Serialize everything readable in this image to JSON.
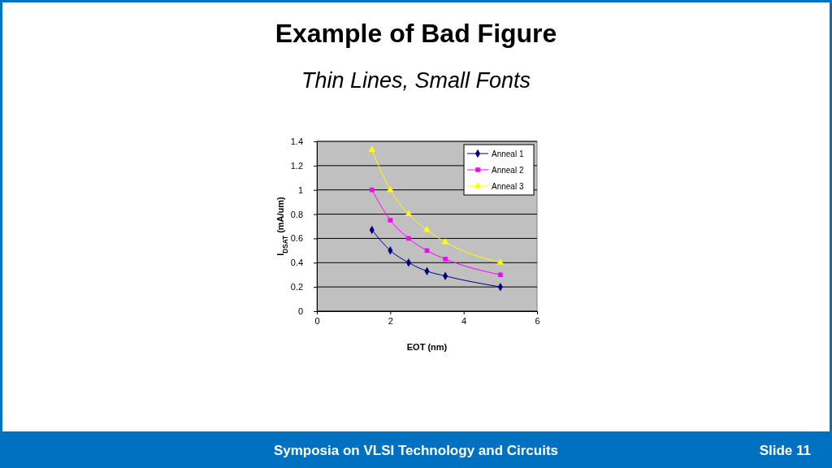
{
  "chart_data": {
    "type": "line",
    "title": "Example of Bad Figure",
    "subtitle": "Thin Lines, Small Fonts",
    "xlabel": "EOT (nm)",
    "ylabel": "I$_{DSAT}$ (mA/um)",
    "x": [
      1.5,
      2,
      2.5,
      3,
      3.5,
      5
    ],
    "series": [
      {
        "name": "Anneal 1",
        "color": "#000080",
        "marker": "diamond",
        "values": [
          0.67,
          0.5,
          0.4,
          0.33,
          0.29,
          0.2
        ]
      },
      {
        "name": "Anneal 2",
        "color": "#ff00ff",
        "marker": "square",
        "values": [
          1.0,
          0.75,
          0.6,
          0.5,
          0.43,
          0.3
        ]
      },
      {
        "name": "Anneal 3",
        "color": "#ffff00",
        "marker": "triangle",
        "values": [
          1.33,
          1.0,
          0.8,
          0.67,
          0.57,
          0.4
        ]
      }
    ],
    "xlim": [
      0,
      6
    ],
    "xticks": [
      0,
      2,
      4,
      6
    ],
    "ylim": [
      0,
      1.4
    ],
    "yticks": [
      0,
      0.2,
      0.4,
      0.6,
      0.8,
      1,
      1.2,
      1.4
    ],
    "grid": "y",
    "legend": "top right",
    "line_style": "solid",
    "annotations": [
      "Symposia on VLSI Technology and Circuits",
      "Slide 11"
    ]
  }
}
